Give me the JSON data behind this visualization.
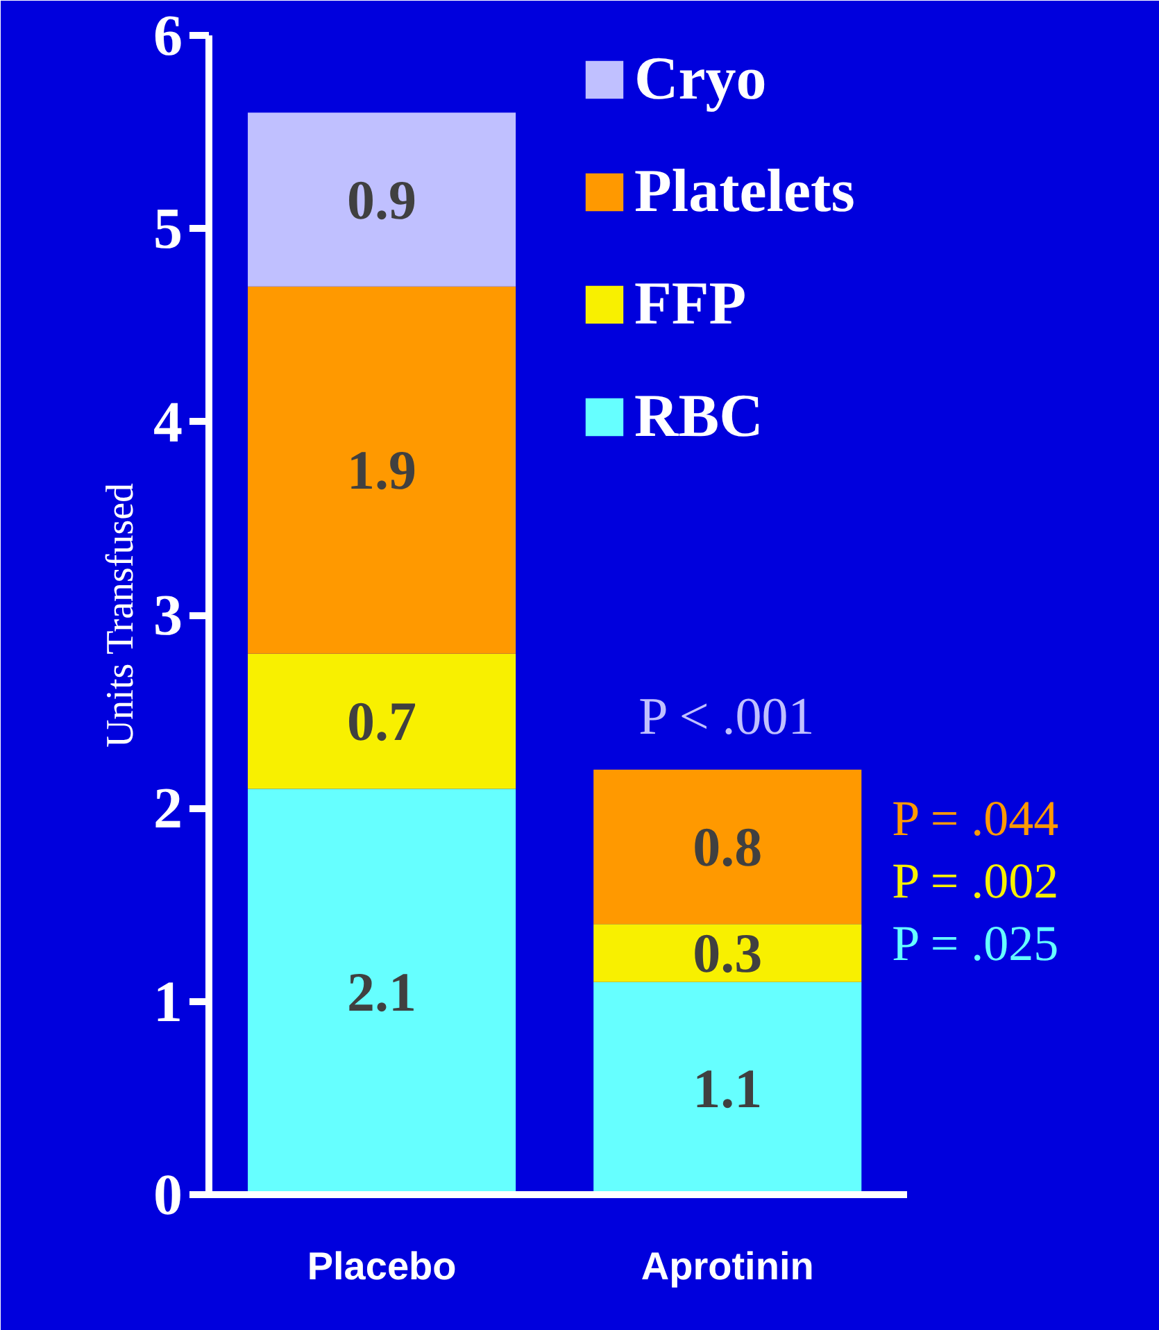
{
  "chart_data": {
    "type": "bar",
    "stacked": true,
    "ylabel": "Units Transfused",
    "categories": [
      "Placebo",
      "Aprotinin"
    ],
    "series": [
      {
        "name": "RBC",
        "color": "#66ffff",
        "values": [
          2.1,
          1.1
        ]
      },
      {
        "name": "FFP",
        "color": "#f8f000",
        "values": [
          0.7,
          0.3
        ]
      },
      {
        "name": "Platelets",
        "color": "#ff9900",
        "values": [
          1.9,
          0.8
        ]
      },
      {
        "name": "Cryo",
        "color": "#c0c0ff",
        "values": [
          0.9,
          null
        ]
      }
    ],
    "ylim": [
      0,
      6
    ],
    "yticks": [
      0,
      1,
      2,
      3,
      4,
      5,
      6
    ],
    "data_labels": true,
    "legend": "top right",
    "annotations": [
      "P < .001",
      "P = .044",
      "P = .002",
      "P = .025"
    ]
  }
}
